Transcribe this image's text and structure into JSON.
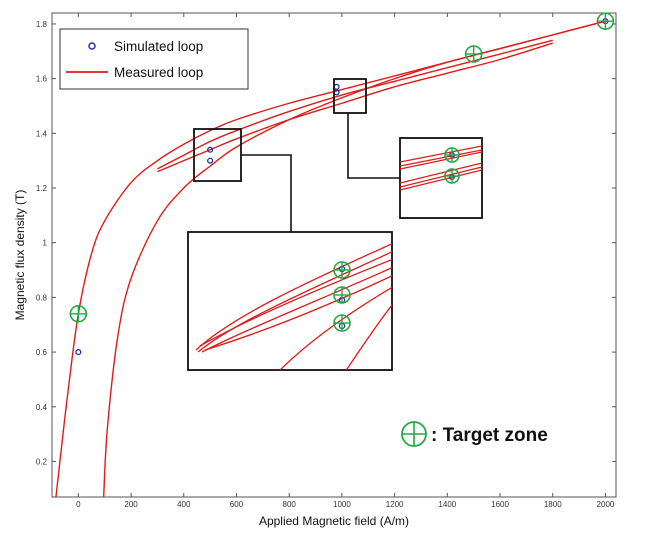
{
  "chart_data": {
    "type": "line",
    "xlabel": "Applied  Magnetic field (A/m)",
    "ylabel": "Magnetic flux density  (T)",
    "xlim": [
      -100,
      2040
    ],
    "ylim": [
      0.07,
      1.84
    ],
    "x_ticks": [
      "0",
      "200",
      "400",
      "600",
      "800",
      "1000",
      "1200",
      "1400",
      "1600",
      "1800",
      "2000"
    ],
    "y_ticks": [
      "0.2",
      "0.4",
      "0.6",
      "0.8",
      "1",
      "1.2",
      "1.4",
      "1.6",
      "1.8"
    ],
    "grid": false,
    "legend": {
      "placement": "top-left",
      "entries": [
        "Simulated loop",
        "Measured loop"
      ]
    },
    "annotation": ": Target zone",
    "colors": {
      "simulated": "#2233aa",
      "measured": "#e11a1a",
      "target": "#22aa44"
    },
    "series": [
      {
        "name": "Measured loop",
        "style": "line",
        "branches": [
          {
            "x": [
              -85,
              -70,
              -40,
              0,
              50,
              100,
              200,
              300,
              400,
              500,
              600,
              800,
              1000,
              1200,
              1400,
              1600,
              1800,
              2000
            ],
            "y": [
              0.07,
              0.2,
              0.45,
              0.74,
              0.96,
              1.08,
              1.22,
              1.3,
              1.36,
              1.41,
              1.45,
              1.51,
              1.56,
              1.61,
              1.66,
              1.71,
              1.76,
              1.81
            ]
          },
          {
            "x": [
              96,
              110,
              150,
              200,
              300,
              400,
              500,
              600,
              800,
              1000,
              1200,
              1400,
              1600,
              1800,
              2000
            ],
            "y": [
              0.07,
              0.32,
              0.66,
              0.87,
              1.08,
              1.2,
              1.28,
              1.35,
              1.45,
              1.53,
              1.6,
              1.66,
              1.71,
              1.76,
              1.81
            ]
          },
          {
            "x": [
              300,
              400,
              500,
              600,
              800,
              1000,
              1200,
              1400,
              1600,
              1800
            ],
            "y": [
              1.27,
              1.32,
              1.37,
              1.41,
              1.48,
              1.54,
              1.59,
              1.64,
              1.69,
              1.74
            ]
          },
          {
            "x": [
              300,
              400,
              500,
              600,
              800,
              1000,
              1200,
              1400,
              1600,
              1800
            ],
            "y": [
              1.26,
              1.3,
              1.34,
              1.38,
              1.45,
              1.51,
              1.57,
              1.62,
              1.67,
              1.73
            ]
          }
        ]
      },
      {
        "name": "Simulated loop",
        "style": "markers",
        "x": [
          0,
          500,
          500,
          980,
          980,
          2000
        ],
        "y": [
          0.6,
          1.34,
          1.3,
          1.57,
          1.55,
          1.81
        ]
      }
    ],
    "target_zones": {
      "x": [
        0,
        1500,
        2000
      ],
      "y": [
        0.74,
        1.69,
        1.81
      ]
    },
    "zoom_insets": [
      {
        "region_x": [
          420,
          570
        ],
        "region_y": [
          1.25,
          1.43
        ],
        "marker_rows": 3
      },
      {
        "region_x": [
          930,
          1030
        ],
        "region_y": [
          1.48,
          1.61
        ],
        "marker_rows": 2
      }
    ]
  }
}
